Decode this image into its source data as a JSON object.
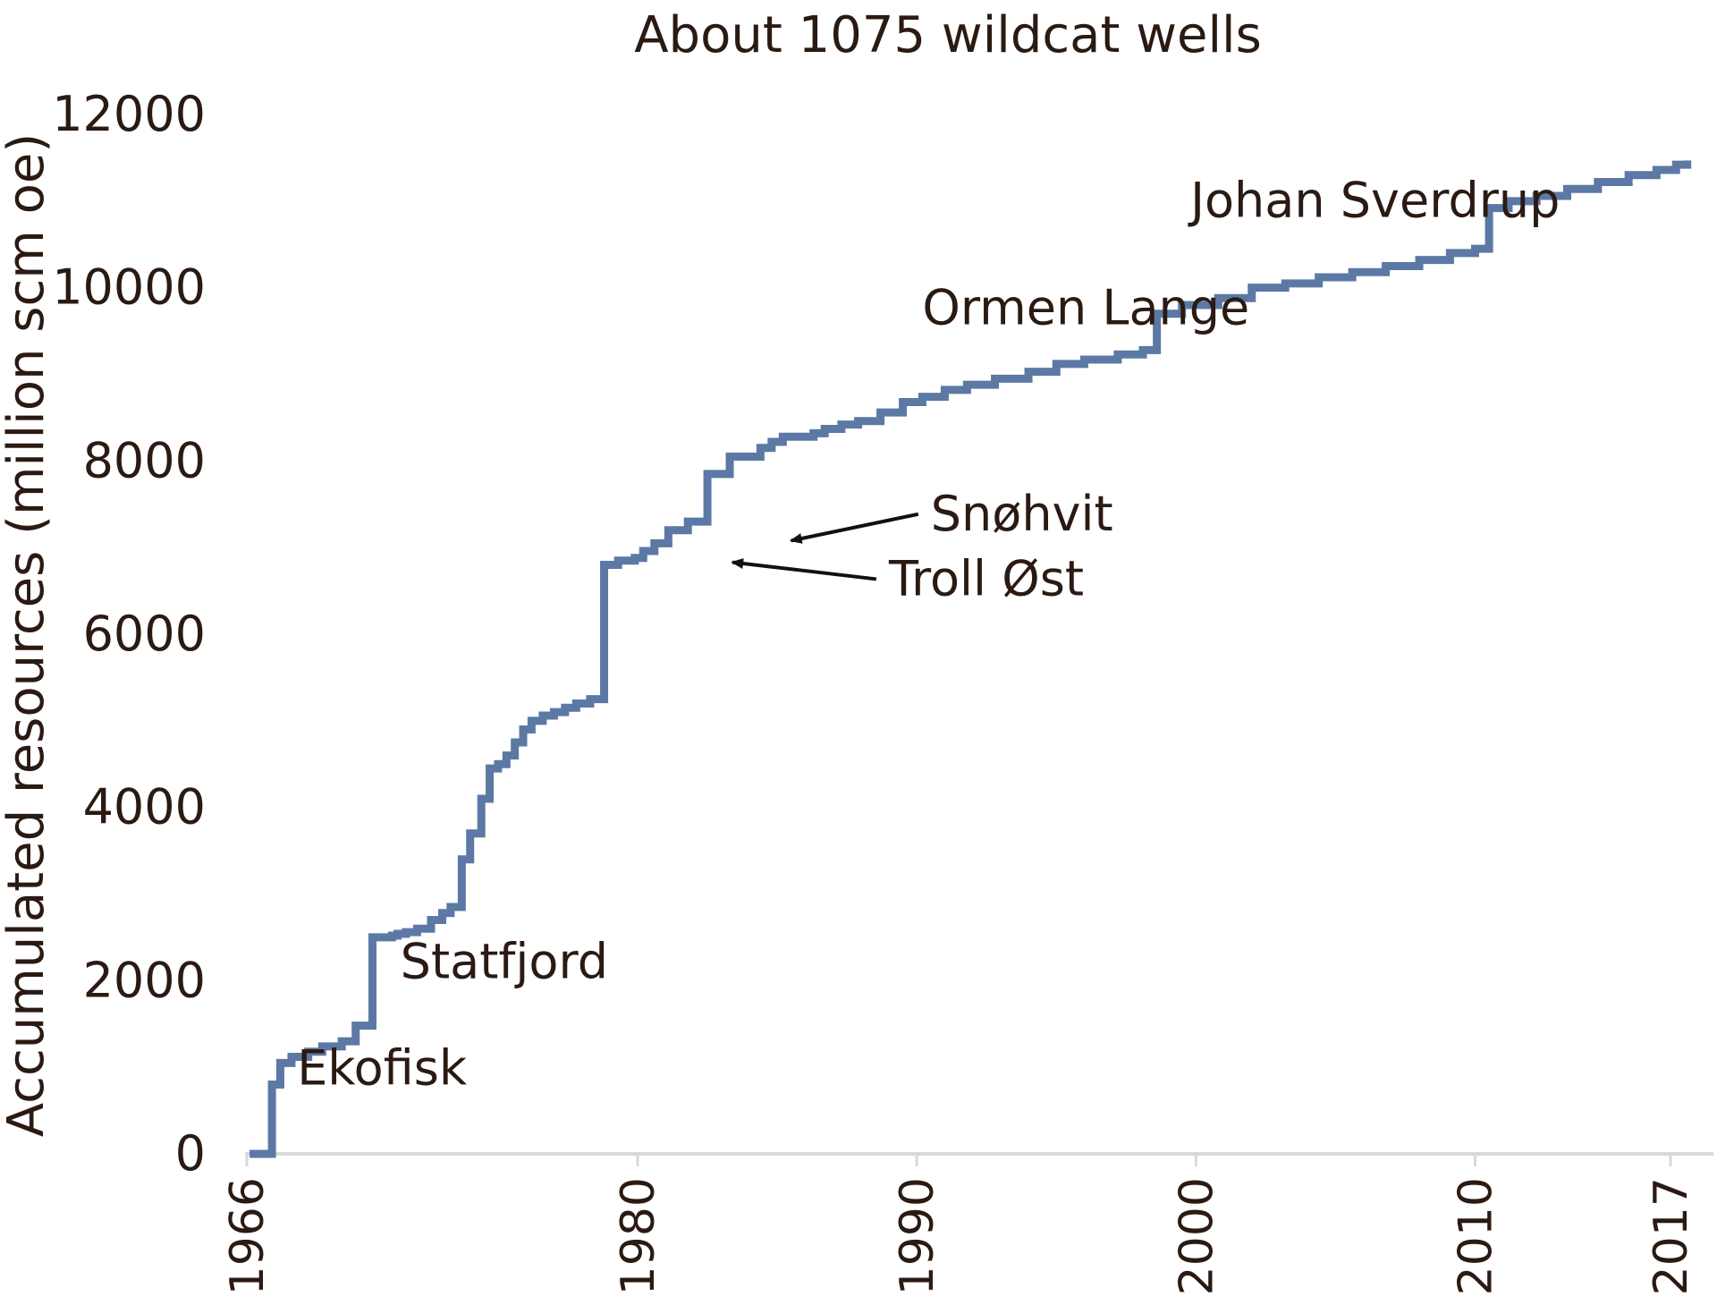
{
  "chart_data": {
    "type": "line",
    "step": true,
    "title": "About 1075 wildcat wells",
    "xlabel": "",
    "ylabel": "Accumulated resources (million scm oe)",
    "xlim": [
      1966,
      2017
    ],
    "ylim": [
      0,
      12000
    ],
    "x_ticks": [
      {
        "value": 1966,
        "label": "1966"
      },
      {
        "value": 1980,
        "label": "1980"
      },
      {
        "value": 1990,
        "label": "1990"
      },
      {
        "value": 2000,
        "label": "2000"
      },
      {
        "value": 2010,
        "label": "2010"
      },
      {
        "value": 2017,
        "label": "2017"
      }
    ],
    "y_ticks": [
      {
        "value": 0,
        "label": "0"
      },
      {
        "value": 2000,
        "label": "2000"
      },
      {
        "value": 4000,
        "label": "4000"
      },
      {
        "value": 6000,
        "label": "6000"
      },
      {
        "value": 8000,
        "label": "8000"
      },
      {
        "value": 10000,
        "label": "10000"
      },
      {
        "value": 12000,
        "label": "12000"
      }
    ],
    "grid": false,
    "line_color": "#5b79a4",
    "axis_color": "#d9d9d9",
    "series": [
      {
        "x": [
          1966.1,
          1966.8,
          1966.9,
          1967.2,
          1967.6,
          1968.2,
          1968.7,
          1969.4,
          1969.9,
          1970.5,
          1971.2,
          1971.4,
          1971.7,
          1972.1,
          1972.6,
          1973.0,
          1973.3,
          1973.7,
          1974.0,
          1974.4,
          1974.7,
          1975.0,
          1975.3,
          1975.6,
          1975.9,
          1976.2,
          1976.6,
          1977.0,
          1977.4,
          1977.8,
          1978.3,
          1978.8,
          1979.3,
          1979.9,
          1980.2,
          1980.6,
          1981.1,
          1981.8,
          1982.5,
          1983.3,
          1984.4,
          1984.8,
          1985.2,
          1986.3,
          1986.7,
          1987.3,
          1987.9,
          1988.7,
          1989.5,
          1990.2,
          1991.0,
          1991.8,
          1992.8,
          1994.0,
          1995.0,
          1996.0,
          1997.2,
          1998.1,
          1998.6,
          1999.5,
          2000.8,
          2002.0,
          2003.2,
          2004.4,
          2005.6,
          2006.8,
          2008.0,
          2009.1,
          2010.0,
          2010.5,
          2011.2,
          2012.2,
          2013.3,
          2014.4,
          2015.5,
          2016.5,
          2017.2,
          2017.6
        ],
        "values": [
          0,
          0,
          800,
          1050,
          1120,
          1180,
          1240,
          1300,
          1480,
          2500,
          2520,
          2540,
          2560,
          2600,
          2700,
          2780,
          2850,
          3400,
          3700,
          4100,
          4450,
          4500,
          4600,
          4750,
          4900,
          5000,
          5060,
          5100,
          5150,
          5200,
          5250,
          6800,
          6850,
          6880,
          6960,
          7050,
          7200,
          7300,
          7850,
          8050,
          8150,
          8220,
          8280,
          8320,
          8370,
          8420,
          8460,
          8560,
          8680,
          8740,
          8820,
          8880,
          8950,
          9030,
          9120,
          9170,
          9230,
          9280,
          9700,
          9800,
          9880,
          10000,
          10050,
          10120,
          10180,
          10250,
          10320,
          10400,
          10450,
          10920,
          11000,
          11060,
          11140,
          11220,
          11300,
          11360,
          11420,
          11470
        ]
      }
    ],
    "annotations": [
      {
        "text": "Ekofisk",
        "x": 1967.8,
        "y": 800
      },
      {
        "text": "Statfjord",
        "x": 1971.5,
        "y": 2030
      },
      {
        "text": "Troll Øst",
        "x": 1989.0,
        "y": 6450,
        "arrow_to_x": 1983.4,
        "arrow_to_y": 6830
      },
      {
        "text": "Snøhvit",
        "x": 1990.5,
        "y": 7200,
        "arrow_to_x": 1985.5,
        "arrow_to_y": 7080
      },
      {
        "text": "Ormen Lange",
        "x": 1990.2,
        "y": 9580
      },
      {
        "text": "Johan Sverdrup",
        "x": 1999.8,
        "y": 10820
      }
    ]
  }
}
